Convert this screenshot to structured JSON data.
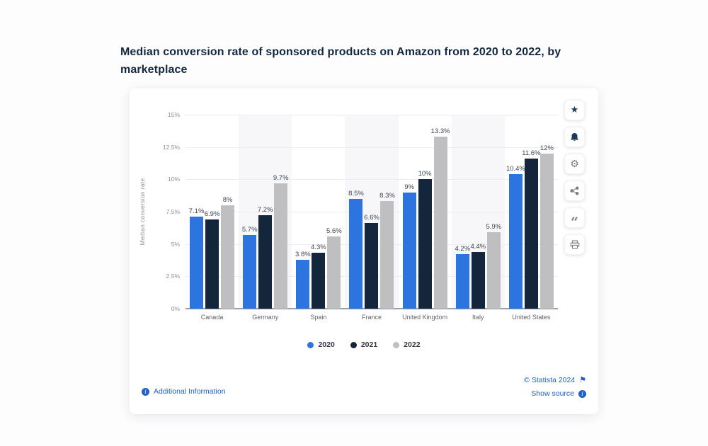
{
  "title": "Median conversion rate of sponsored products on Amazon from 2020 to 2022, by marketplace",
  "chart_data": {
    "type": "bar",
    "title": "Median conversion rate of sponsored products on Amazon from 2020 to 2022, by marketplace",
    "categories": [
      "Canada",
      "Germany",
      "Spain",
      "France",
      "United Kingdom",
      "Italy",
      "United States"
    ],
    "series": [
      {
        "name": "2020",
        "color": "#2c74df",
        "values": [
          7.1,
          5.7,
          3.8,
          8.5,
          9,
          4.2,
          10.4
        ],
        "labels": [
          "7.1%",
          "5.7%",
          "3.8%",
          "8.5%",
          "9%",
          "4.2%",
          "10.4%"
        ]
      },
      {
        "name": "2021",
        "color": "#13263c",
        "values": [
          6.9,
          7.2,
          4.3,
          6.6,
          10,
          4.4,
          11.6
        ],
        "labels": [
          "6.9%",
          "7.2%",
          "4.3%",
          "6.6%",
          "10%",
          "4.4%",
          "11.6%"
        ]
      },
      {
        "name": "2022",
        "color": "#bfbfc1",
        "values": [
          8,
          9.7,
          5.6,
          8.3,
          13.3,
          5.9,
          12
        ],
        "labels": [
          "8%",
          "9.7%",
          "5.6%",
          "8.3%",
          "13.3%",
          "5.9%",
          "12%"
        ]
      }
    ],
    "xlabel": "",
    "ylabel": "Median conversion rate",
    "ylim": [
      0,
      15
    ],
    "yticks": [
      "0%",
      "2.5%",
      "5%",
      "7.5%",
      "10%",
      "12.5%",
      "15%"
    ],
    "grid": true,
    "legend_position": "bottom"
  },
  "toolbar": {
    "buttons": [
      "star",
      "bell",
      "gear",
      "share",
      "quote",
      "print"
    ]
  },
  "footer": {
    "additional_information": "Additional Information",
    "copyright": "© Statista 2024",
    "show_source": "Show source"
  },
  "colors": {
    "accent_blue": "#2c74df",
    "navy": "#13263c",
    "gray": "#bfbfc1",
    "link_blue": "#2160c4",
    "title_navy": "#13283f"
  }
}
